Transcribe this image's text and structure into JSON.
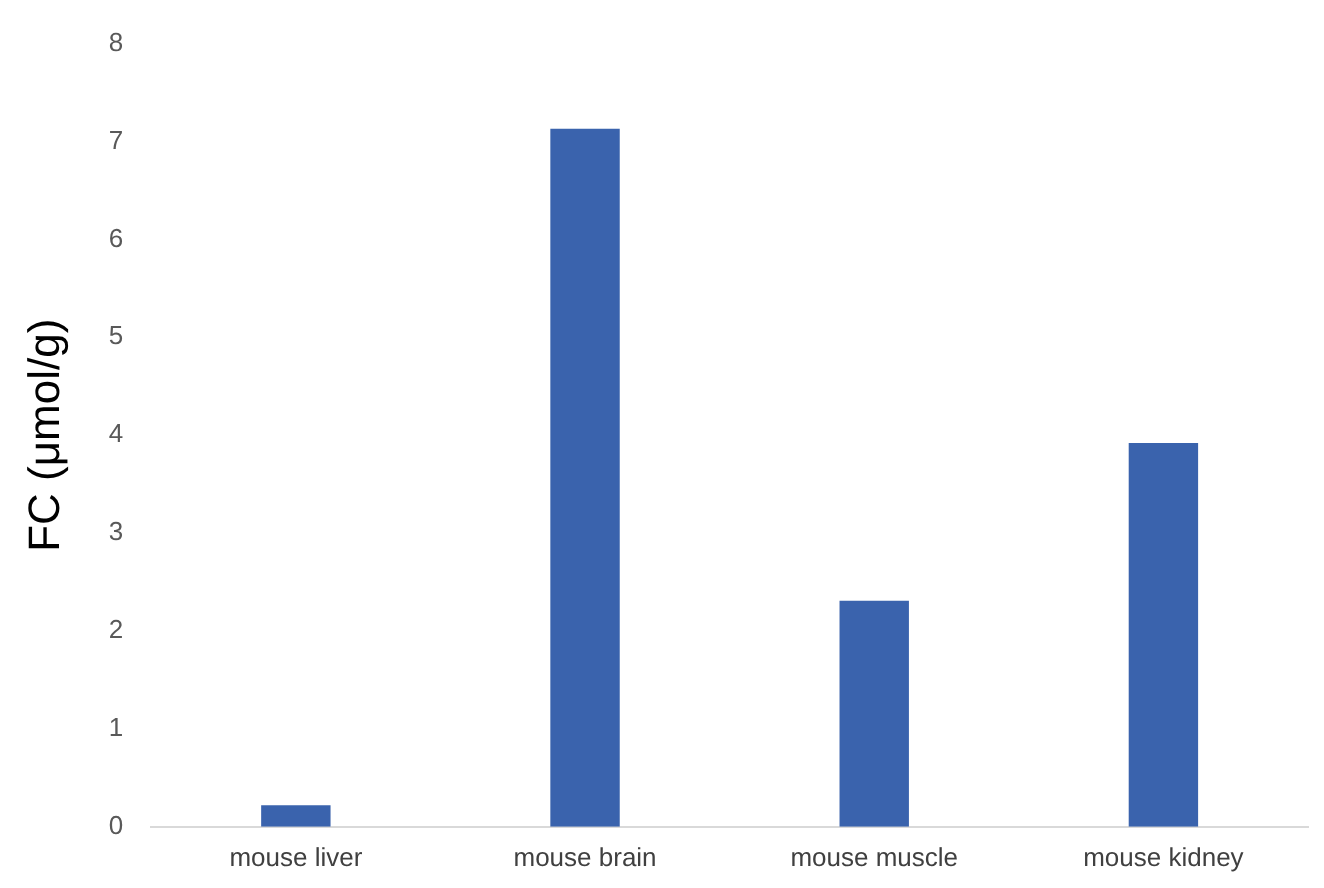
{
  "chart_data": {
    "type": "bar",
    "ylabel": "FC (μmol/g)",
    "categories": [
      "mouse liver",
      "mouse brain",
      "mouse muscle",
      "mouse kidney"
    ],
    "values": [
      0.22,
      7.13,
      2.31,
      3.92
    ],
    "color": "#3a63ad",
    "ylim": [
      0,
      8
    ],
    "yticks": [
      0,
      1,
      2,
      3,
      4,
      5,
      6,
      7,
      8
    ],
    "grid": false
  }
}
